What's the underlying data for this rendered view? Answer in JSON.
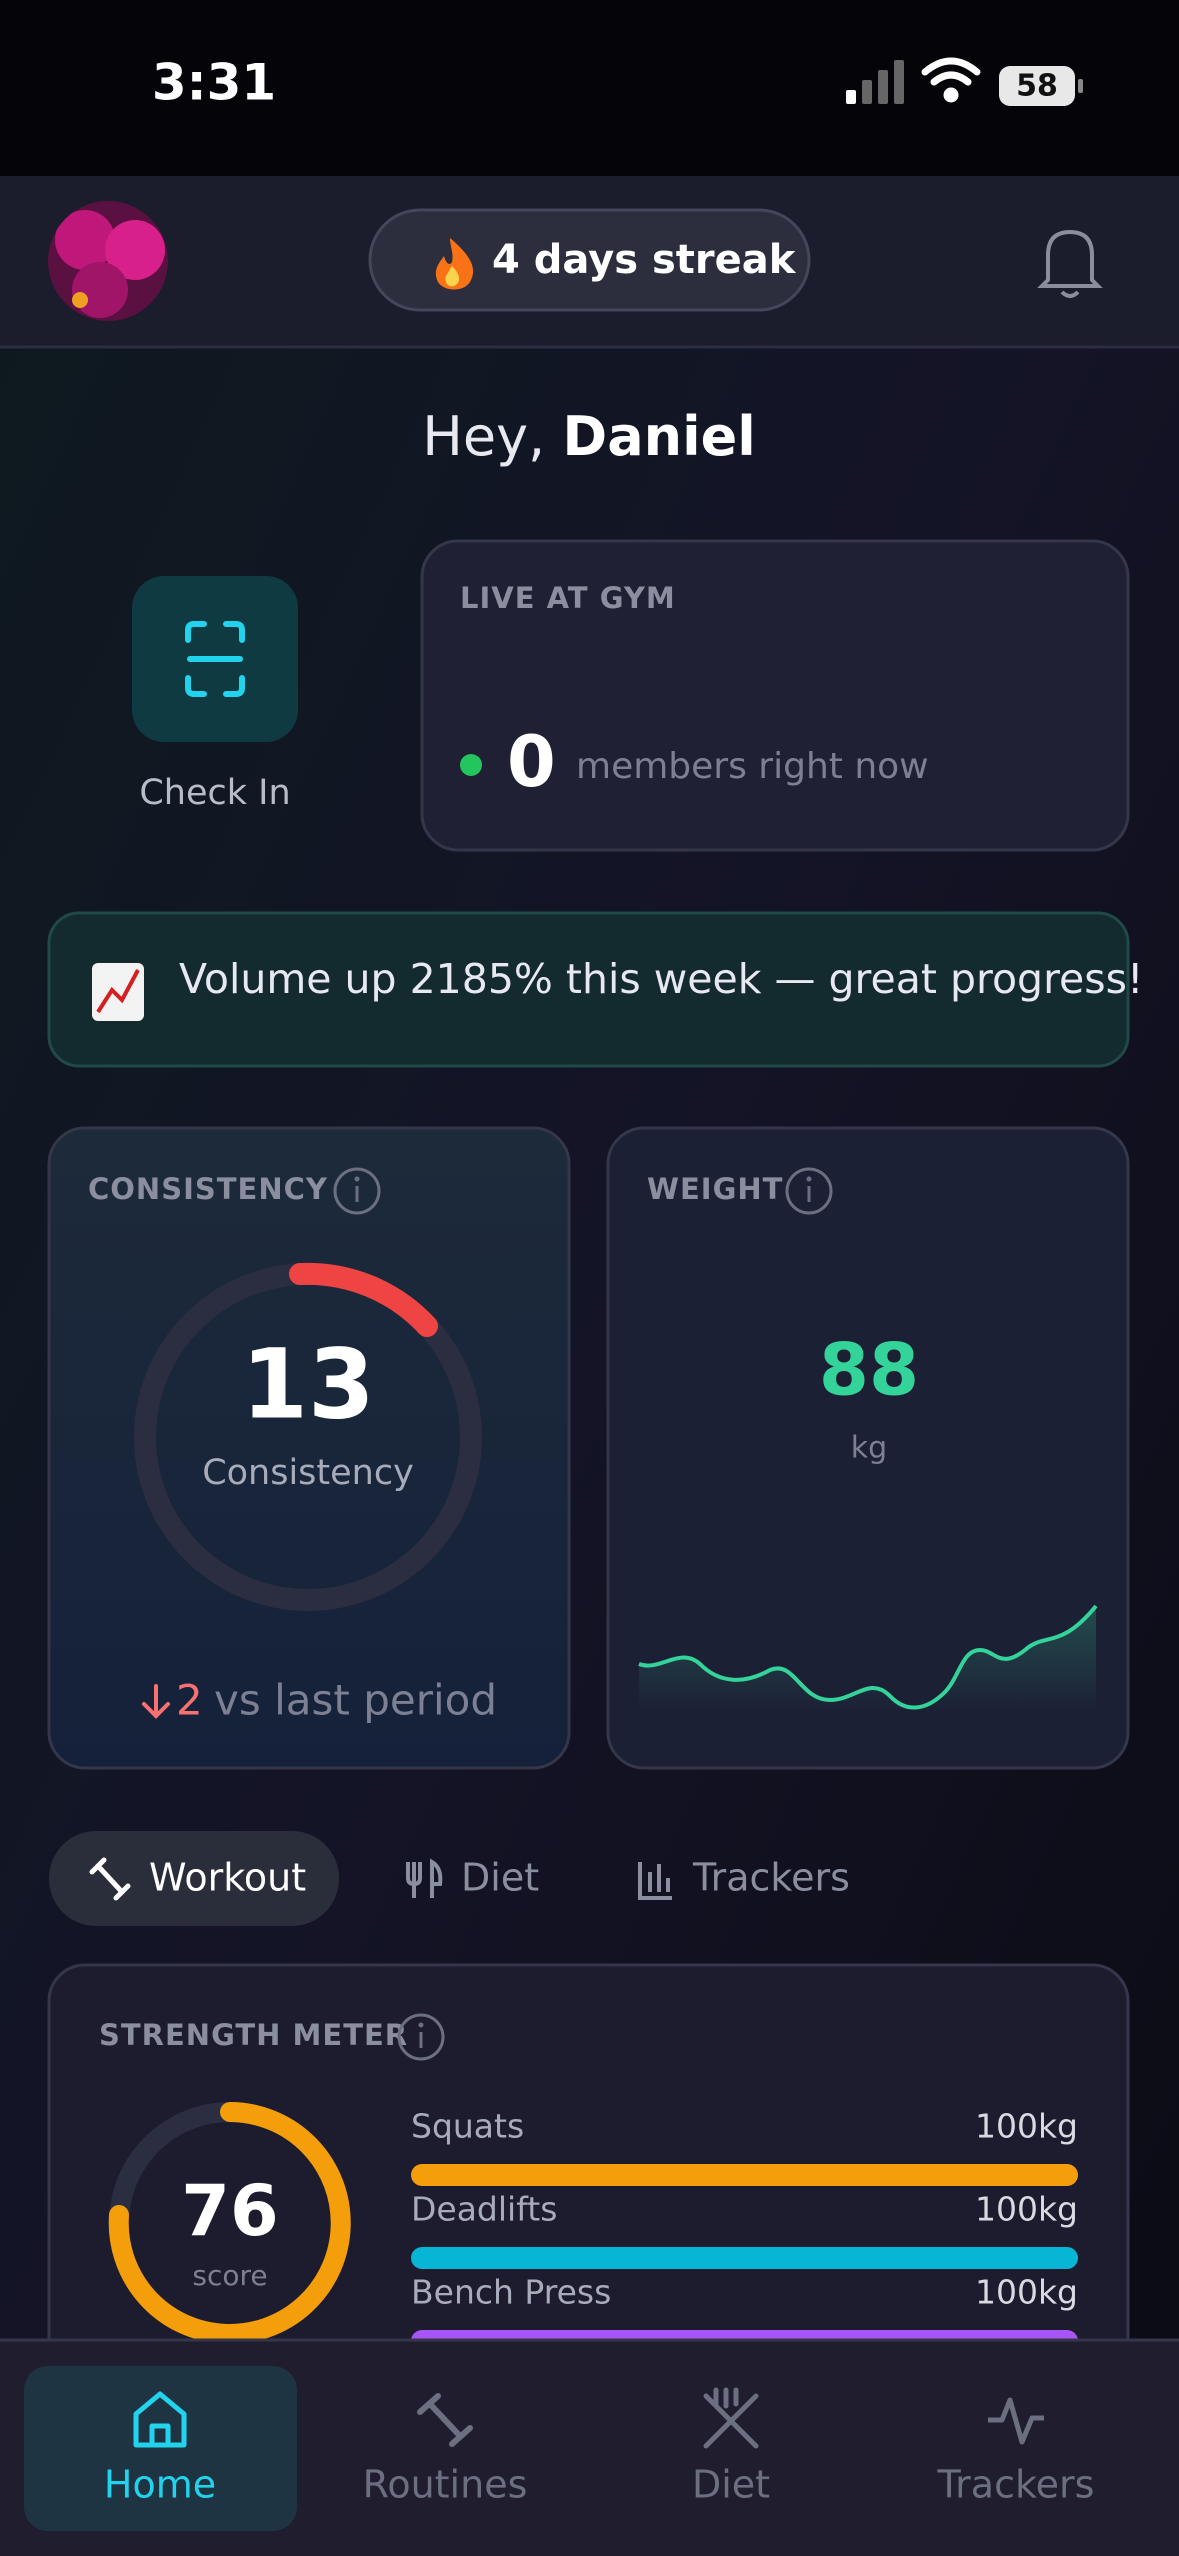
{
  "status_bar": {
    "time": "3:31",
    "battery": "58"
  },
  "header": {
    "streak": "4 days streak"
  },
  "greeting": {
    "prefix": "Hey,",
    "name": "Daniel"
  },
  "check_in": {
    "label": "Check In"
  },
  "live": {
    "title": "LIVE AT GYM",
    "count": 0,
    "caption": "members right now"
  },
  "banner": {
    "text": "Volume up 2185% this week — great progress!"
  },
  "consistency": {
    "title": "CONSISTENCY",
    "value": 13,
    "label": "Consistency",
    "change": 2,
    "change_caption": "vs last period"
  },
  "weight": {
    "title": "WEIGHT",
    "value": 88,
    "unit": "kg"
  },
  "tabs": [
    "Workout",
    "Diet",
    "Trackers"
  ],
  "strength": {
    "title": "STRENGTH METER",
    "score": 76,
    "score_label": "score",
    "lifts": [
      {
        "name": "Squats",
        "value": "100kg"
      },
      {
        "name": "Deadlifts",
        "value": "100kg"
      },
      {
        "name": "Bench Press",
        "value": "100kg"
      }
    ]
  },
  "nav": [
    "Home",
    "Routines",
    "Diet",
    "Trackers"
  ]
}
